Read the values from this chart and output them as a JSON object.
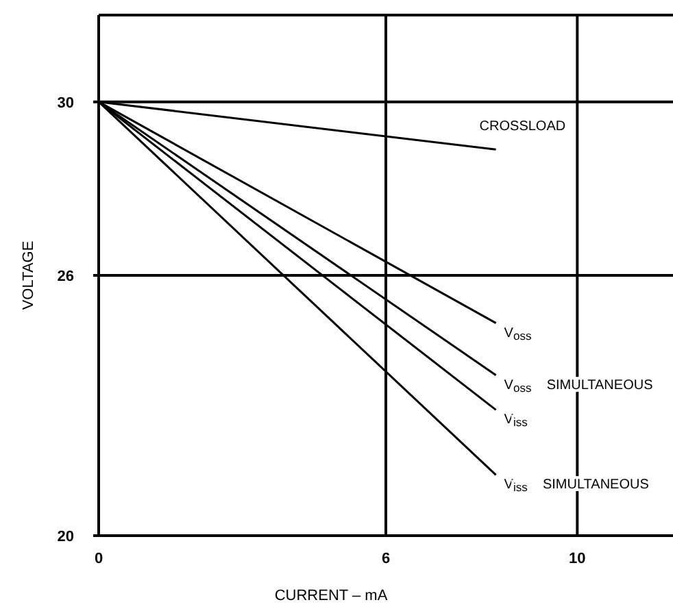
{
  "chart_data": {
    "type": "line",
    "xlabel": "CURRENT – mA",
    "ylabel": "VOLTAGE",
    "xlim": [
      0,
      12
    ],
    "ylim": [
      20,
      32
    ],
    "xticks": [
      0,
      6,
      10
    ],
    "yticks": [
      20,
      26,
      30
    ],
    "grid": true,
    "legend": false,
    "marker": "none",
    "line_style": "solid",
    "x": [
      0,
      8.3
    ],
    "series": [
      {
        "name": "CROSSLOAD",
        "color": "#000000",
        "values": [
          30,
          28.9
        ]
      },
      {
        "name": "V$_{oss}$",
        "color": "#000000",
        "values": [
          30,
          24.9
        ]
      },
      {
        "name": "V$_{oss}$ SIMULTANEOUS",
        "color": "#000000",
        "values": [
          30,
          23.7
        ]
      },
      {
        "name": "V$_{iss}$",
        "color": "#000000",
        "values": [
          30,
          22.9
        ]
      },
      {
        "name": "V$_{iss}$ SIMULTANEOUS",
        "color": "#000000",
        "values": [
          30,
          21.4
        ]
      }
    ]
  }
}
